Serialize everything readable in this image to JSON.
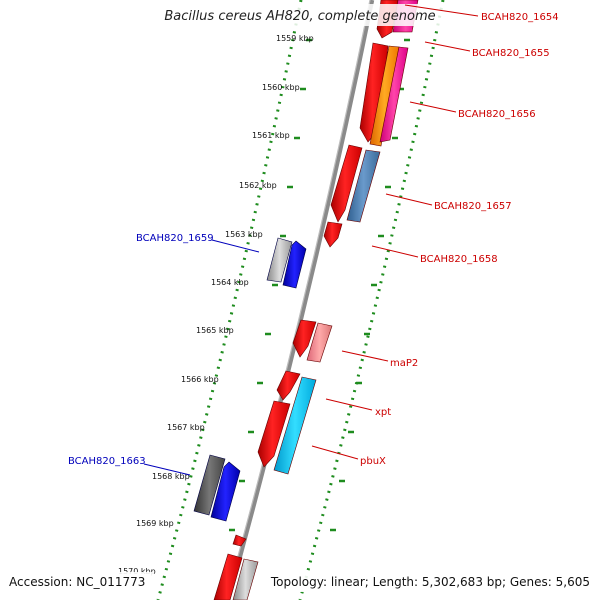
{
  "title": "Bacillus cereus AH820, complete genome",
  "accession": "Accession: NC_011773",
  "topology": "Topology: linear; Length: 5,302,683 bp; Genes: 5,605",
  "scale_labels": [
    "1559 kbp",
    "1560 kbp",
    "1561 kbp",
    "1562 kbp",
    "1563 kbp",
    "1564 kbp",
    "1565 kbp",
    "1566 kbp",
    "1567 kbp",
    "1568 kbp",
    "1569 kbp",
    "1570 kbp"
  ],
  "forward_labels": [
    {
      "text": "BCAH820_1654",
      "color": "#cc0000"
    },
    {
      "text": "BCAH820_1655",
      "color": "#cc0000"
    },
    {
      "text": "BCAH820_1656",
      "color": "#cc0000"
    },
    {
      "text": "BCAH820_1657",
      "color": "#cc0000"
    },
    {
      "text": "BCAH820_1658",
      "color": "#cc0000"
    },
    {
      "text": "maP2",
      "color": "#cc0000"
    },
    {
      "text": "xpt",
      "color": "#cc0000"
    },
    {
      "text": "pbuX",
      "color": "#cc0000"
    }
  ],
  "reverse_labels": [
    {
      "text": "BCAH820_1659",
      "color": "#0000bb"
    },
    {
      "text": "BCAH820_1663",
      "color": "#0000bb"
    }
  ],
  "colors": {
    "backbone": "#8a8a8a",
    "dots": "#1e8c1e",
    "forward_gene": "#ee1111",
    "reverse_gene": "#1010dd"
  }
}
